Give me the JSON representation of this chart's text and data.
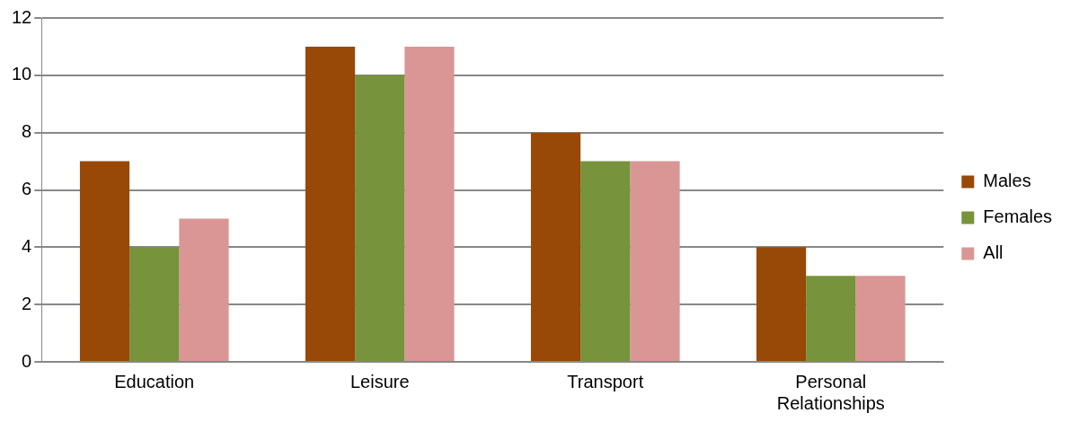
{
  "chart_data": {
    "type": "bar",
    "categories": [
      "Education",
      "Leisure",
      "Transport",
      "Personal Relationships"
    ],
    "series": [
      {
        "name": "Males",
        "color": "#984807",
        "values": [
          7,
          11,
          8,
          4
        ]
      },
      {
        "name": "Females",
        "color": "#77933c",
        "values": [
          4,
          10,
          7,
          3
        ]
      },
      {
        "name": "All",
        "color": "#d99694",
        "values": [
          5,
          11,
          7,
          3
        ]
      }
    ],
    "ylim": [
      0,
      12
    ],
    "yticks": [
      0,
      2,
      4,
      6,
      8,
      10,
      12
    ],
    "grid": "y",
    "legend": "right"
  }
}
